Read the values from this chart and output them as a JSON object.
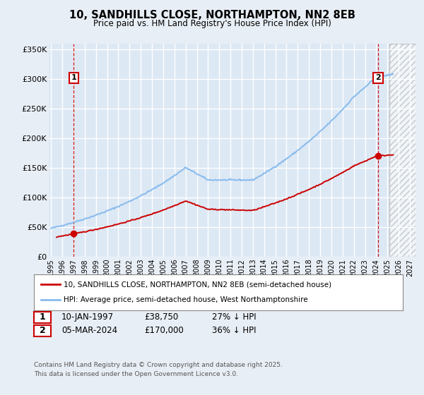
{
  "title": "10, SANDHILLS CLOSE, NORTHAMPTON, NN2 8EB",
  "subtitle": "Price paid vs. HM Land Registry's House Price Index (HPI)",
  "bg_color": "#e8eef5",
  "plot_bg_color": "#dce8f4",
  "grid_color": "#ffffff",
  "red_color": "#cc0000",
  "blue_color": "#88bbee",
  "legend_label_red": "10, SANDHILLS CLOSE, NORTHAMPTON, NN2 8EB (semi-detached house)",
  "legend_label_blue": "HPI: Average price, semi-detached house, West Northamptonshire",
  "point1_date": "10-JAN-1997",
  "point1_price": "£38,750",
  "point1_hpi": "27% ↓ HPI",
  "point1_year": 1997.03,
  "point1_value": 38750,
  "point2_date": "05-MAR-2024",
  "point2_price": "£170,000",
  "point2_hpi": "36% ↓ HPI",
  "point2_year": 2024.17,
  "point2_value": 170000,
  "ylim": [
    0,
    360000
  ],
  "xlim_left": 1994.8,
  "xlim_right": 2027.5,
  "hatch_start": 2025.2,
  "footnote_line1": "Contains HM Land Registry data © Crown copyright and database right 2025.",
  "footnote_line2": "This data is licensed under the Open Government Licence v3.0.",
  "yticks": [
    0,
    50000,
    100000,
    150000,
    200000,
    250000,
    300000,
    350000
  ],
  "ytick_labels": [
    "£0",
    "£50K",
    "£100K",
    "£150K",
    "£200K",
    "£250K",
    "£300K",
    "£350K"
  ],
  "xticks": [
    1995,
    1996,
    1997,
    1998,
    1999,
    2000,
    2001,
    2002,
    2003,
    2004,
    2005,
    2006,
    2007,
    2008,
    2009,
    2010,
    2011,
    2012,
    2013,
    2014,
    2015,
    2016,
    2017,
    2018,
    2019,
    2020,
    2021,
    2022,
    2023,
    2024,
    2025,
    2026,
    2027
  ]
}
